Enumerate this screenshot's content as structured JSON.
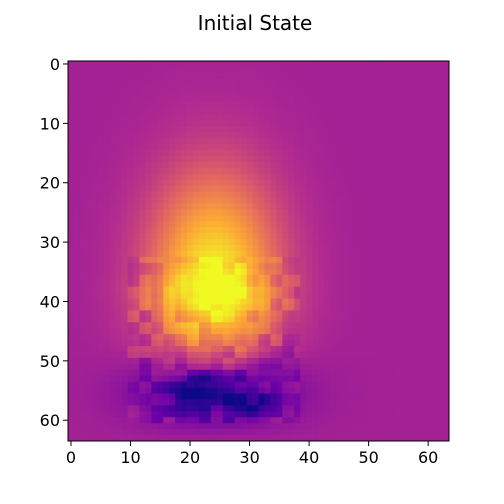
{
  "chart_data": {
    "type": "heatmap",
    "title": "Initial State",
    "xlabel": "",
    "ylabel": "",
    "grid": false,
    "legend": "none",
    "colormap": "plasma",
    "colormap_stops": [
      "#0d0887",
      "#6a00a8",
      "#b12a90",
      "#e16462",
      "#fca636",
      "#f0f921"
    ],
    "value_range": [
      0,
      1
    ],
    "background_value": 0.36,
    "grid_size": [
      64,
      64
    ],
    "xlim": [
      -0.5,
      63.5
    ],
    "ylim": [
      63.5,
      -0.5
    ],
    "x_ticks": [
      "0",
      "10",
      "20",
      "30",
      "40",
      "50",
      "60"
    ],
    "y_ticks": [
      "0",
      "10",
      "20",
      "30",
      "40",
      "50",
      "60"
    ],
    "features": [
      {
        "kind": "hot_glow",
        "center": [
          24,
          36
        ],
        "radius": [
          11,
          18
        ],
        "amplitude": 0.6
      },
      {
        "kind": "hot_band",
        "center": [
          24,
          38
        ],
        "radius": [
          10,
          4
        ],
        "amplitude": 0.16
      },
      {
        "kind": "cold_pool",
        "center": [
          24,
          55
        ],
        "radius": [
          12,
          6
        ],
        "amplitude": -0.48
      },
      {
        "kind": "cold_core",
        "center": [
          21,
          55
        ],
        "radius": [
          3,
          2
        ],
        "amplitude": -0.2
      },
      {
        "kind": "cold_core",
        "center": [
          30,
          57
        ],
        "radius": [
          3,
          2
        ],
        "amplitude": -0.12
      }
    ]
  }
}
